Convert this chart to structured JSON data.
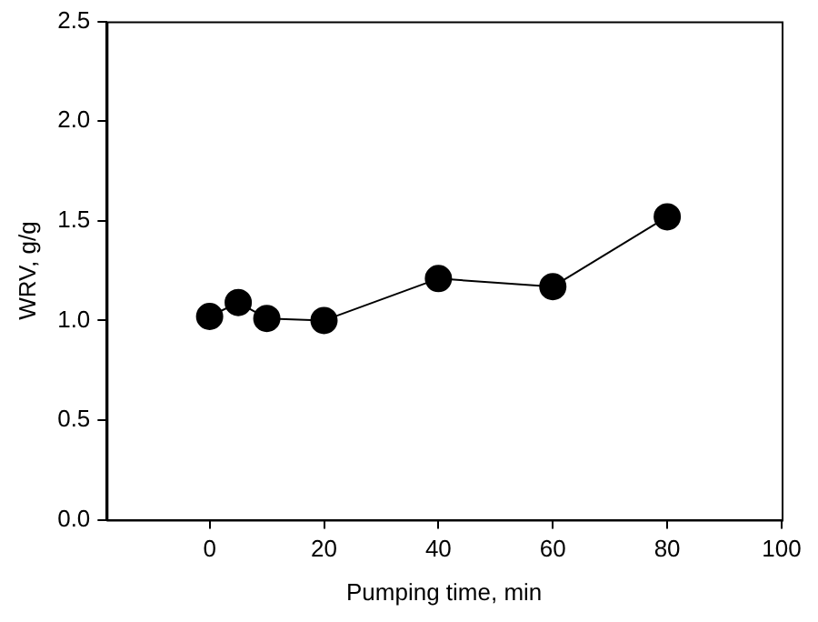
{
  "chart_data": {
    "type": "line",
    "xlabel": "Pumping time, min",
    "ylabel": "WRV, g/g",
    "x": [
      0,
      5,
      10,
      20,
      40,
      60,
      80
    ],
    "series": [
      {
        "color": "#000000",
        "values": [
          1.02,
          1.09,
          1.01,
          1.0,
          1.21,
          1.17,
          1.52
        ]
      }
    ],
    "xlim": [
      -18,
      100
    ],
    "xticks": [
      0,
      20,
      40,
      60,
      80,
      100
    ],
    "ylim": [
      0,
      2.5
    ],
    "yticks": [
      {
        "value": 0,
        "label": "0.0"
      },
      {
        "value": 0.5,
        "label": "0.5"
      },
      {
        "value": 1.0,
        "label": "1.0"
      },
      {
        "value": 1.5,
        "label": "1.5"
      },
      {
        "value": 2.0,
        "label": "2.0"
      },
      {
        "value": 2.5,
        "label": "2.5"
      }
    ],
    "grid": false,
    "legend": false,
    "marker": "circle",
    "line_style": "solid"
  }
}
